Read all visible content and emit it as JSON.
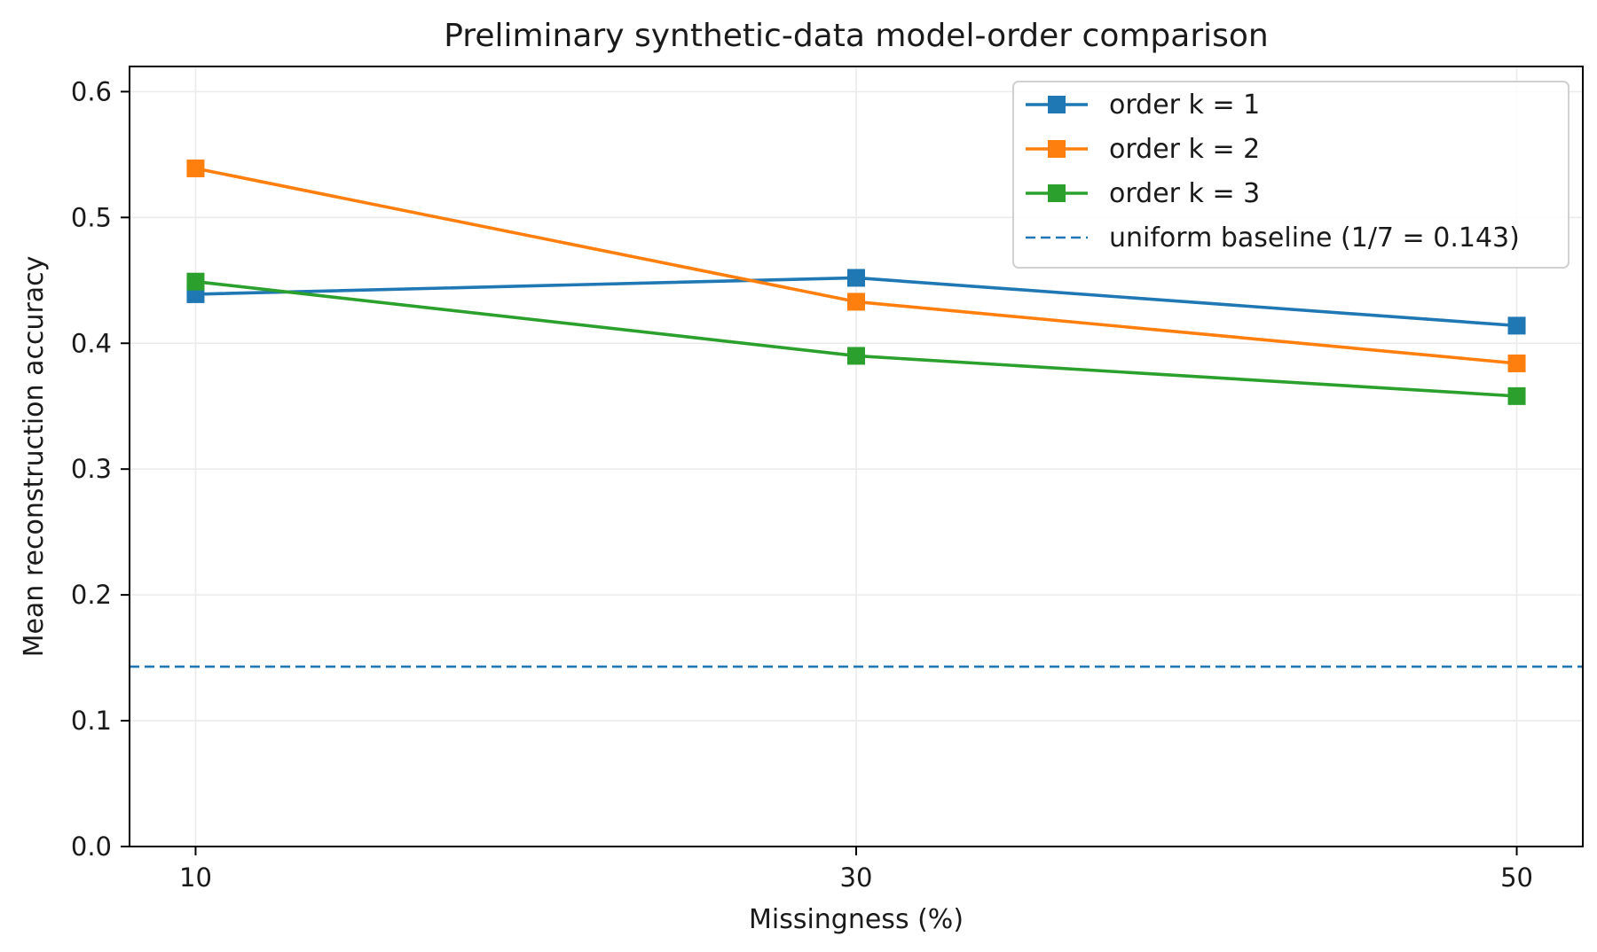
{
  "chart_data": {
    "type": "line",
    "title": "Preliminary synthetic-data model-order comparison",
    "xlabel": "Missingness (%)",
    "ylabel": "Mean reconstruction accuracy",
    "x": [
      10,
      30,
      50
    ],
    "xticks": [
      "10",
      "30",
      "50"
    ],
    "xlim": [
      8,
      52
    ],
    "ylim": [
      0.0,
      0.62
    ],
    "yticks": [
      "0.0",
      "0.1",
      "0.2",
      "0.3",
      "0.4",
      "0.5",
      "0.6"
    ],
    "grid": true,
    "legend_position": "top-right",
    "series": [
      {
        "name": "order k = 1",
        "color": "#1f77b4",
        "marker": "square",
        "values": [
          0.439,
          0.452,
          0.414
        ]
      },
      {
        "name": "order k = 2",
        "color": "#ff7f0e",
        "marker": "square",
        "values": [
          0.539,
          0.433,
          0.384
        ]
      },
      {
        "name": "order k = 3",
        "color": "#2ca02c",
        "marker": "square",
        "values": [
          0.449,
          0.39,
          0.358
        ]
      }
    ],
    "reference_lines": [
      {
        "name": "uniform baseline (1/7 = 0.143)",
        "value": 0.143,
        "color": "#1f77b4",
        "style": "dashed"
      }
    ]
  }
}
